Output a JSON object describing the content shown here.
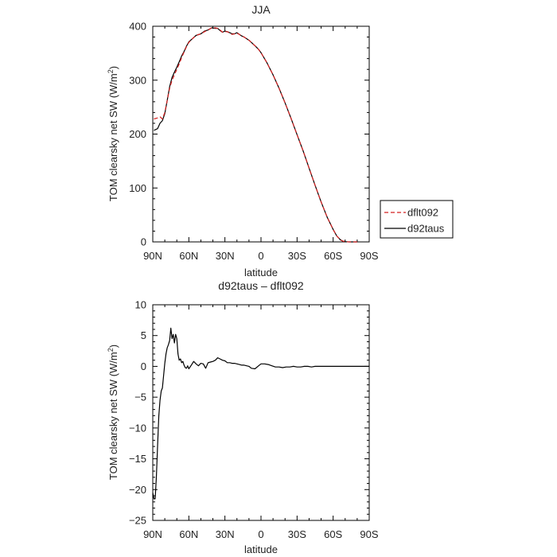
{
  "chart_data": [
    {
      "type": "line",
      "title": "JJA",
      "xlabel": "latitude",
      "ylabel_main": "TOM clearsky net SW (W/m",
      "ylabel_sup": "2",
      "ylabel_end": ")",
      "xlim": [
        90,
        -90
      ],
      "ylim": [
        0,
        400
      ],
      "xticks": [
        90,
        60,
        30,
        0,
        -30,
        -60,
        -90
      ],
      "xtick_labels": [
        "90N",
        "60N",
        "30N",
        "0",
        "30S",
        "60S",
        "90S"
      ],
      "yticks": [
        0,
        100,
        200,
        300,
        400
      ],
      "ytick_labels": [
        "0",
        "100",
        "200",
        "300",
        "400"
      ],
      "legend_placement": "outside-right",
      "grid": false,
      "series": [
        {
          "name": "dflt092",
          "color": "#d42020",
          "dash": "dashed",
          "x": [
            89,
            86,
            84,
            82,
            80,
            78,
            76,
            74,
            72,
            70,
            68,
            66,
            64,
            62,
            60,
            57,
            54,
            50,
            47,
            44,
            41,
            38,
            36,
            34,
            32,
            30,
            28,
            26,
            24,
            22,
            20,
            18,
            16,
            14,
            12,
            10,
            8,
            5,
            2,
            0,
            -5,
            -10,
            -15,
            -20,
            -25,
            -30,
            -35,
            -40,
            -45,
            -50,
            -55,
            -60,
            -63,
            -66,
            -68,
            -70,
            -72,
            -74,
            -76,
            -78,
            -80
          ],
          "y": [
            228,
            230,
            232,
            228,
            240,
            262,
            285,
            300,
            310,
            320,
            330,
            342,
            352,
            362,
            370,
            377,
            383,
            386,
            390,
            393,
            397,
            397,
            396,
            393,
            389,
            390,
            390,
            387,
            385,
            386,
            387,
            385,
            382,
            380,
            377,
            374,
            370,
            364,
            357,
            351,
            332,
            310,
            285,
            258,
            229,
            199,
            169,
            137,
            105,
            74,
            46,
            23,
            11,
            4,
            1.5,
            0.5,
            0.2,
            0,
            0,
            0,
            0
          ]
        },
        {
          "name": "d92taus",
          "color": "#000000",
          "dash": "solid",
          "x": [
            89,
            86,
            84,
            82,
            80,
            78,
            76,
            74,
            72,
            70,
            68,
            66,
            64,
            62,
            60,
            57,
            54,
            50,
            47,
            44,
            41,
            38,
            36,
            34,
            32,
            30,
            28,
            26,
            24,
            22,
            20,
            18,
            16,
            14,
            12,
            10,
            8,
            5,
            2,
            0,
            -5,
            -10,
            -15,
            -20,
            -25,
            -30,
            -35,
            -40,
            -45,
            -50,
            -55,
            -60,
            -63,
            -66,
            -68,
            -70,
            -72,
            -74,
            -76,
            -78,
            -80
          ],
          "y": [
            207,
            210,
            220,
            225,
            238,
            262,
            288,
            305,
            315,
            324,
            334,
            345,
            353,
            363,
            371,
            377,
            383,
            386,
            391,
            393,
            397,
            396,
            396,
            392,
            389,
            391,
            390,
            388,
            386,
            386,
            388,
            385,
            382,
            380,
            377,
            374,
            370,
            364,
            357,
            351,
            332,
            310,
            285,
            258,
            229,
            199,
            169,
            137,
            105,
            74,
            46,
            23,
            11,
            4,
            1.5,
            0.5,
            0.2,
            0,
            0,
            0,
            0
          ]
        }
      ]
    },
    {
      "type": "line",
      "title": "d92taus – dflt092",
      "xlabel": "latitude",
      "ylabel_main": "TOM clearsky net SW (W/m",
      "ylabel_sup": "2",
      "ylabel_end": ")",
      "xlim": [
        90,
        -90
      ],
      "ylim": [
        -25,
        10
      ],
      "xticks": [
        90,
        60,
        30,
        0,
        -30,
        -60,
        -90
      ],
      "xtick_labels": [
        "90N",
        "60N",
        "30N",
        "0",
        "30S",
        "60S",
        "90S"
      ],
      "yticks": [
        -25,
        -20,
        -15,
        -10,
        -5,
        0,
        5,
        10
      ],
      "ytick_labels": [
        "−25",
        "−20",
        "−15",
        "−10",
        "−5",
        "0",
        "5",
        "10"
      ],
      "grid": false,
      "series": [
        {
          "color": "#000000",
          "dash": "solid",
          "x": [
            90,
            89,
            88,
            87,
            86,
            85,
            84,
            83,
            82,
            81,
            80,
            79,
            78,
            77,
            76,
            75,
            74,
            73,
            72,
            71,
            70,
            69,
            68,
            67,
            66,
            65,
            64,
            63,
            62,
            61,
            60,
            58,
            56,
            54,
            52,
            50,
            48,
            46,
            44,
            42,
            40,
            38,
            36,
            34,
            32,
            30,
            28,
            26,
            24,
            22,
            20,
            18,
            16,
            14,
            12,
            10,
            8,
            5,
            2,
            0,
            -3,
            -6,
            -9,
            -12,
            -15,
            -18,
            -21,
            -24,
            -27,
            -30,
            -33,
            -36,
            -39,
            -42,
            -45,
            -48,
            -51,
            -54,
            -57,
            -60,
            -63,
            -66,
            -70,
            -75,
            -80,
            -85,
            -90
          ],
          "y": [
            -20.5,
            -21.5,
            -21.5,
            -18,
            -13,
            -8,
            -5.5,
            -4,
            -3.5,
            -1.5,
            0.5,
            2,
            3,
            3.5,
            4.2,
            6.2,
            4.5,
            5.2,
            3.8,
            5.2,
            4.5,
            2,
            1,
            1.2,
            0.6,
            0.8,
            0.2,
            -0.2,
            -0.3,
            0.1,
            -0.4,
            0.2,
            0.8,
            0.4,
            0.1,
            0.5,
            0.4,
            -0.3,
            0.6,
            0.7,
            0.8,
            1.0,
            1.4,
            1.2,
            1.0,
            0.9,
            0.6,
            0.6,
            0.5,
            0.5,
            0.4,
            0.3,
            0.2,
            0.2,
            0.1,
            0.0,
            -0.3,
            -0.4,
            0.1,
            0.4,
            0.4,
            0.3,
            0.1,
            -0.1,
            -0.1,
            -0.2,
            -0.1,
            -0.1,
            0.0,
            -0.1,
            -0.1,
            0.0,
            0.0,
            -0.1,
            0.0,
            0.0,
            0.0,
            0.0,
            0.0,
            0.0,
            0.0,
            0.0,
            0.0,
            0.0,
            0.0,
            0.0,
            0.0
          ]
        }
      ]
    }
  ]
}
